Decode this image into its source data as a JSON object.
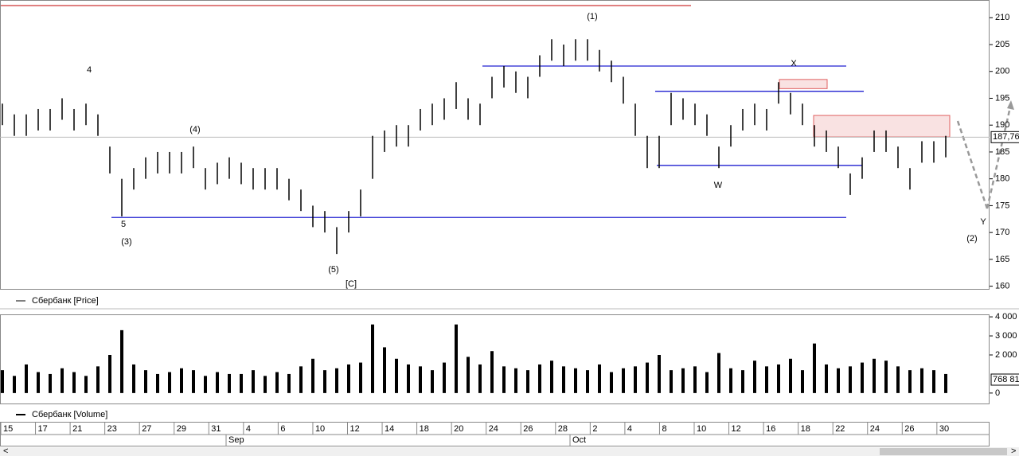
{
  "chart_data": {
    "type": "ohlc",
    "series": [
      {
        "name": "Сбербанк [Price]",
        "color": "#000000",
        "high": [
          194,
          192,
          192,
          193,
          193,
          195,
          193,
          194,
          192,
          186,
          180,
          182,
          184,
          185,
          185,
          185,
          186,
          182,
          183,
          184,
          183,
          182,
          182,
          182,
          180,
          178,
          175,
          174,
          171,
          174,
          178,
          188,
          189,
          190,
          190,
          193,
          194,
          195,
          198,
          195,
          194,
          199,
          201,
          200,
          199,
          203,
          206,
          205,
          206,
          206,
          204,
          202,
          199,
          194,
          188,
          188,
          196,
          195,
          194,
          192,
          186,
          190,
          193,
          194,
          193,
          198,
          196,
          194,
          190,
          189,
          186,
          181,
          184,
          189,
          189,
          186,
          182,
          187,
          187,
          188
        ],
        "low": [
          190,
          188,
          188,
          189,
          189,
          191,
          189,
          190,
          188,
          181,
          173,
          178,
          180,
          181,
          181,
          181,
          182,
          178,
          179,
          180,
          179,
          178,
          178,
          178,
          176,
          174,
          171,
          170,
          166,
          170,
          173,
          180,
          185,
          186,
          186,
          189,
          190,
          191,
          193,
          191,
          190,
          195,
          197,
          196,
          195,
          199,
          202,
          201,
          202,
          202,
          200,
          198,
          194,
          188,
          182,
          182,
          190,
          191,
          190,
          188,
          182,
          186,
          189,
          190,
          189,
          194,
          192,
          190,
          186,
          185,
          182,
          177,
          180,
          185,
          185,
          182,
          178,
          183,
          183,
          184
        ]
      }
    ],
    "ylim": [
      159.5,
      213.3
    ],
    "yticks": [
      160,
      165,
      170,
      175,
      180,
      185,
      190,
      195,
      200,
      205,
      210
    ],
    "last_price": {
      "value": 187.76,
      "label": "187,76"
    },
    "levels": [
      {
        "value": 201,
        "color": "#2020d0"
      },
      {
        "value": 196.3,
        "color": "#2020d0"
      },
      {
        "value": 182.5,
        "color": "#2020d0"
      },
      {
        "value": 172.8,
        "color": "#2020d0"
      }
    ],
    "zones": [
      {
        "top": 198.5,
        "bottom": 196.8,
        "color": "#e06060"
      },
      {
        "top": 191.8,
        "bottom": 187.8,
        "color": "#e06060"
      }
    ],
    "annotations": [
      "(1)",
      "4",
      "(4)",
      "5",
      "(3)",
      "(5)",
      "[C]",
      "X",
      "W",
      "Y",
      "(2)"
    ],
    "volume": {
      "name": "Сбербанк [Volume]",
      "color": "#000000",
      "values": [
        1200,
        900,
        1500,
        1100,
        1000,
        1300,
        1100,
        900,
        1400,
        2000,
        3300,
        1500,
        1200,
        1000,
        1100,
        1300,
        1200,
        900,
        1100,
        1000,
        1000,
        1200,
        900,
        1100,
        1000,
        1400,
        1800,
        1200,
        1300,
        1500,
        1600,
        3600,
        2400,
        1800,
        1500,
        1400,
        1200,
        1600,
        3600,
        1900,
        1500,
        2200,
        1400,
        1300,
        1200,
        1500,
        1700,
        1400,
        1300,
        1200,
        1500,
        1100,
        1300,
        1400,
        1600,
        2000,
        1200,
        1300,
        1400,
        1100,
        2100,
        1300,
        1200,
        1700,
        1400,
        1500,
        1800,
        1200,
        2600,
        1500,
        1300,
        1400,
        1600,
        1800,
        1700,
        1400,
        1200,
        1300,
        1200,
        1000
      ],
      "ylim": [
        -590,
        4130
      ],
      "yticks": [
        {
          "value": 0,
          "label": "0"
        },
        {
          "value": 2000,
          "label": "2 000"
        },
        {
          "value": 3000,
          "label": "3 000"
        },
        {
          "value": 4000,
          "label": "4 000"
        }
      ],
      "last_label": "768 81"
    },
    "date_labels": [
      "15",
      "17",
      "21",
      "23",
      "27",
      "29",
      "31",
      "4",
      "6",
      "10",
      "12",
      "14",
      "18",
      "20",
      "24",
      "26",
      "28",
      "2",
      "4",
      "8",
      "10",
      "12",
      "16",
      "18",
      "22",
      "24",
      "26",
      "30"
    ],
    "months": [
      "Sep",
      "Oct"
    ]
  }
}
